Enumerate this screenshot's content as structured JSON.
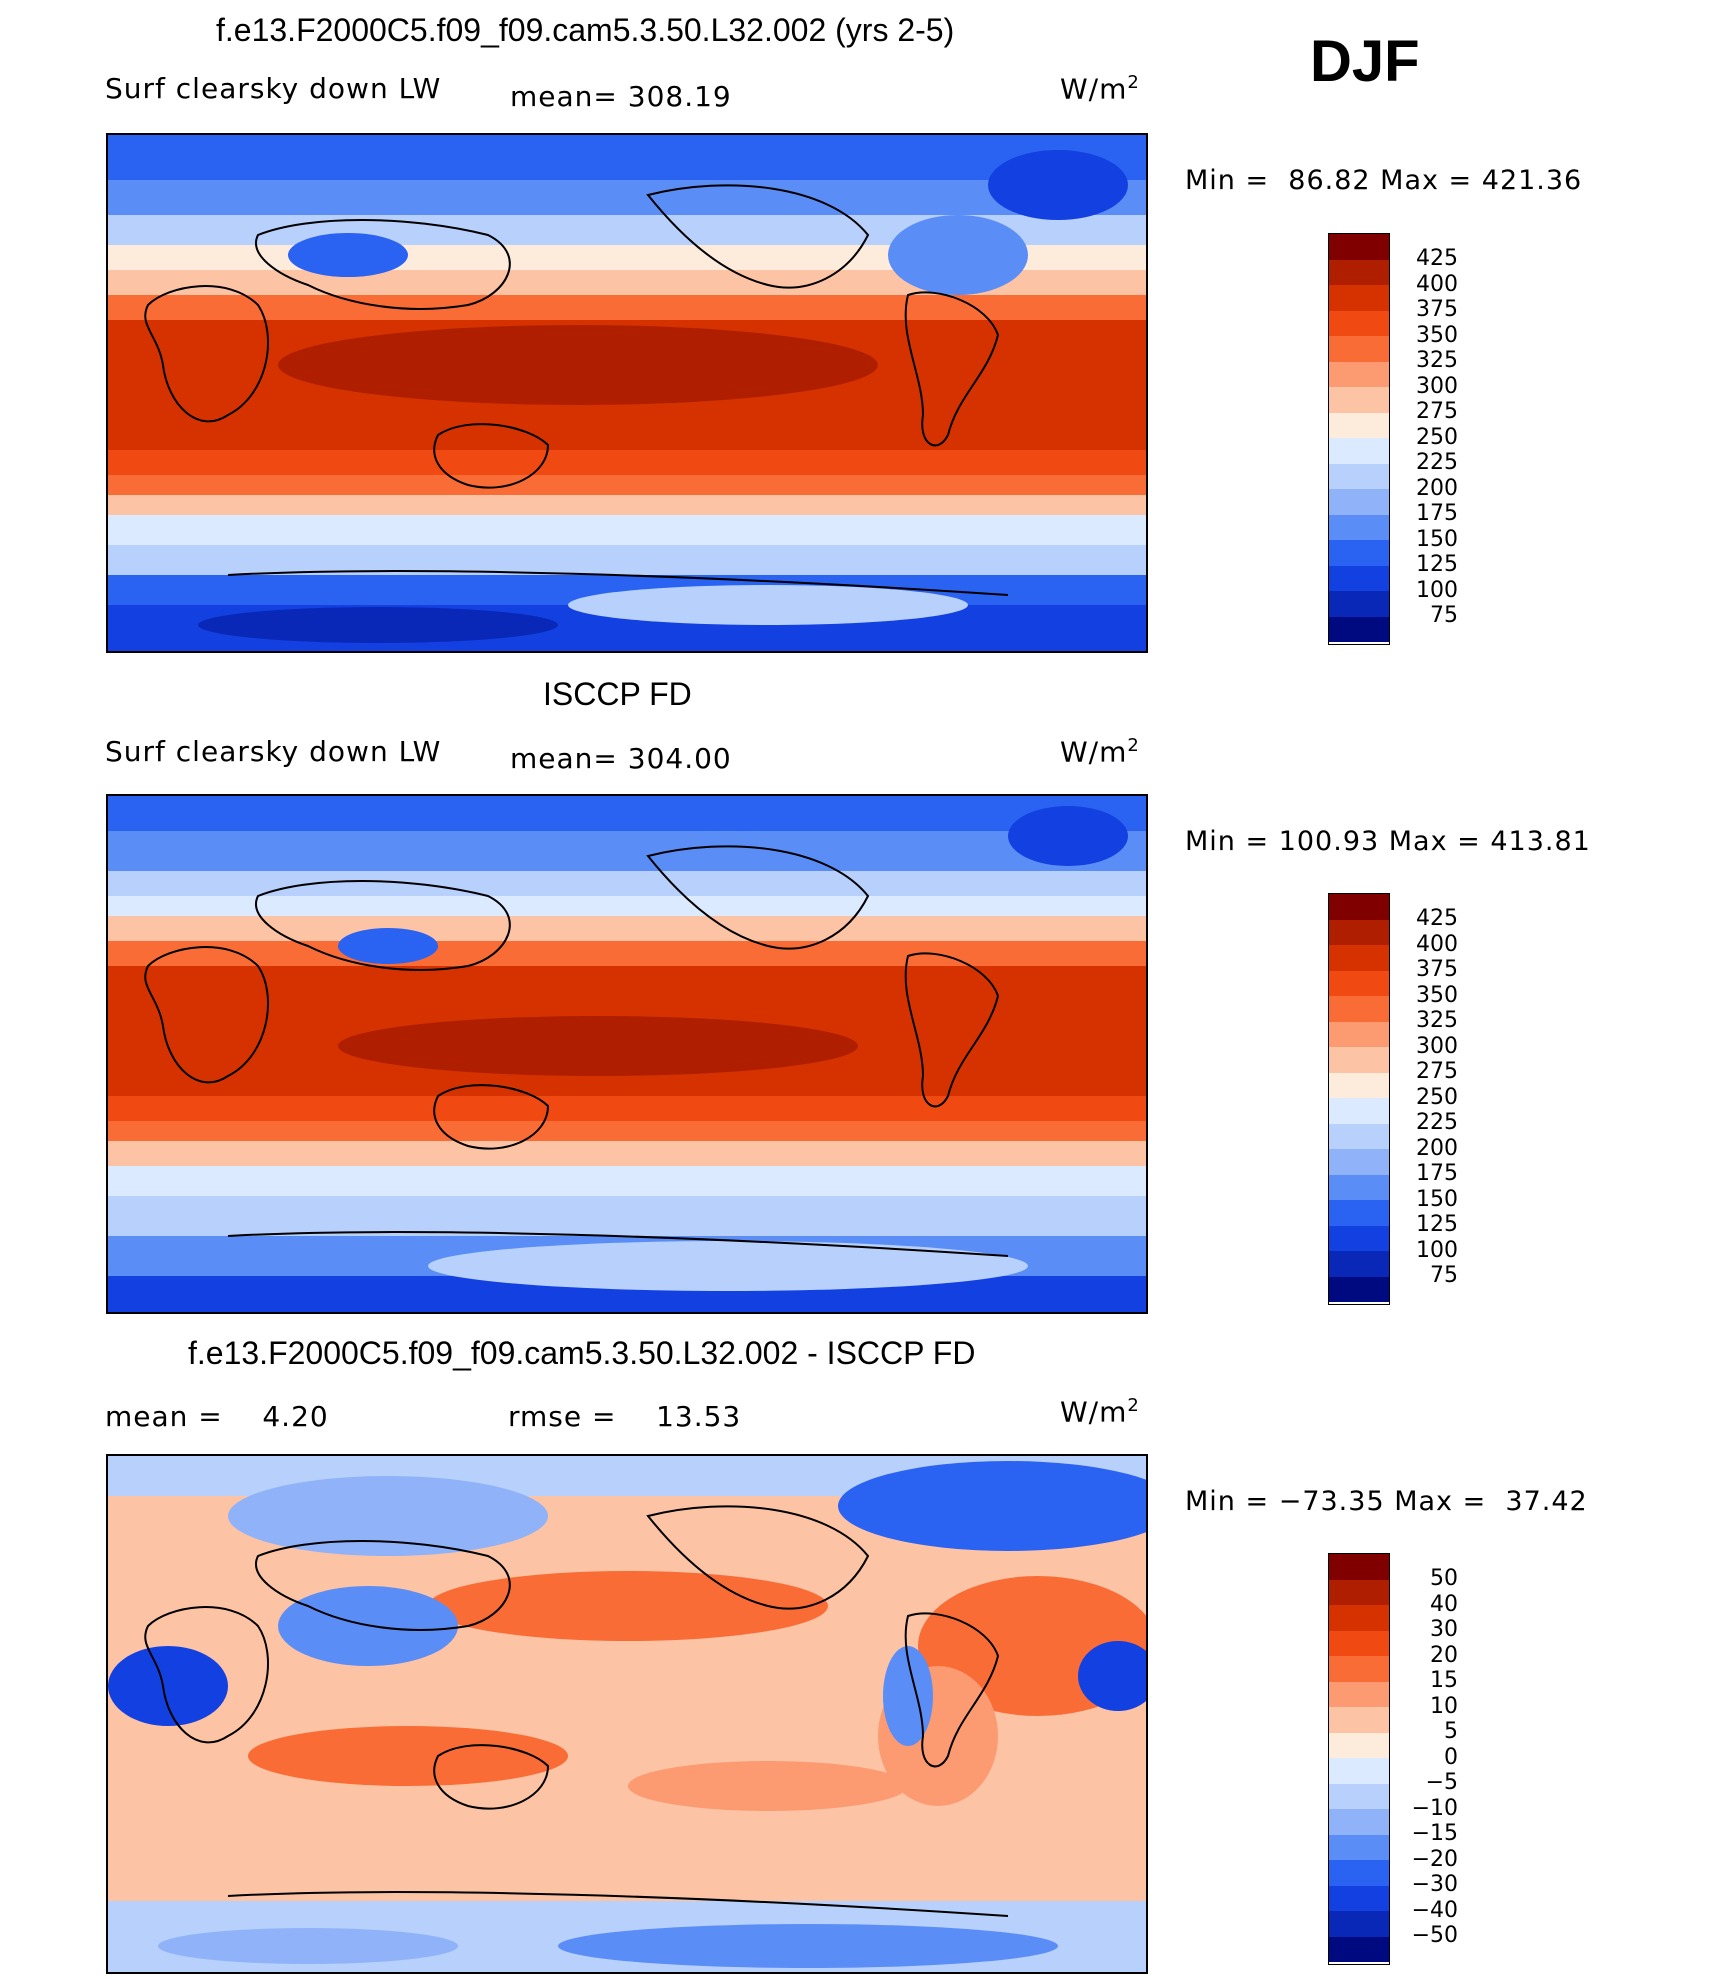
{
  "season": "DJF",
  "panels": [
    {
      "title": "f.e13.F2000C5.f09_f09.cam5.3.50.L32.002 (yrs 2-5)",
      "variable": "Surf clearsky down LW",
      "mean_text": "mean= 308.19",
      "units": "W/m",
      "units_sup": "2",
      "minmax_text": "Min =  86.82 Max = 421.36",
      "colorbar_labels": [
        "425",
        "400",
        "375",
        "350",
        "325",
        "300",
        "275",
        "250",
        "225",
        "200",
        "175",
        "150",
        "125",
        "100",
        "75"
      ]
    },
    {
      "title": "ISCCP FD",
      "variable": "Surf clearsky down LW",
      "mean_text": "mean= 304.00",
      "units": "W/m",
      "units_sup": "2",
      "minmax_text": "Min = 100.93 Max = 413.81",
      "colorbar_labels": [
        "425",
        "400",
        "375",
        "350",
        "325",
        "300",
        "275",
        "250",
        "225",
        "200",
        "175",
        "150",
        "125",
        "100",
        "75"
      ]
    },
    {
      "title": "f.e13.F2000C5.f09_f09.cam5.3.50.L32.002 - ISCCP FD",
      "variable": "mean =    4.20",
      "mean_text": "rmse =    13.53",
      "units": "W/m",
      "units_sup": "2",
      "minmax_text": "Min = −73.35 Max =  37.42",
      "colorbar_labels": [
        "50",
        "40",
        "30",
        "20",
        "15",
        "10",
        "5",
        "0",
        "−5",
        "−10",
        "−15",
        "−20",
        "−30",
        "−40",
        "−50"
      ]
    }
  ],
  "colors": {
    "palette": [
      "#800000",
      "#b01e00",
      "#d63200",
      "#f04a12",
      "#fa6c36",
      "#fc9a72",
      "#fdc3a5",
      "#fdebdc",
      "#dceaff",
      "#b7d0fc",
      "#8fb2f8",
      "#5a8df5",
      "#2a62f2",
      "#1340e0",
      "#0a28b8",
      "#000a80"
    ]
  }
}
